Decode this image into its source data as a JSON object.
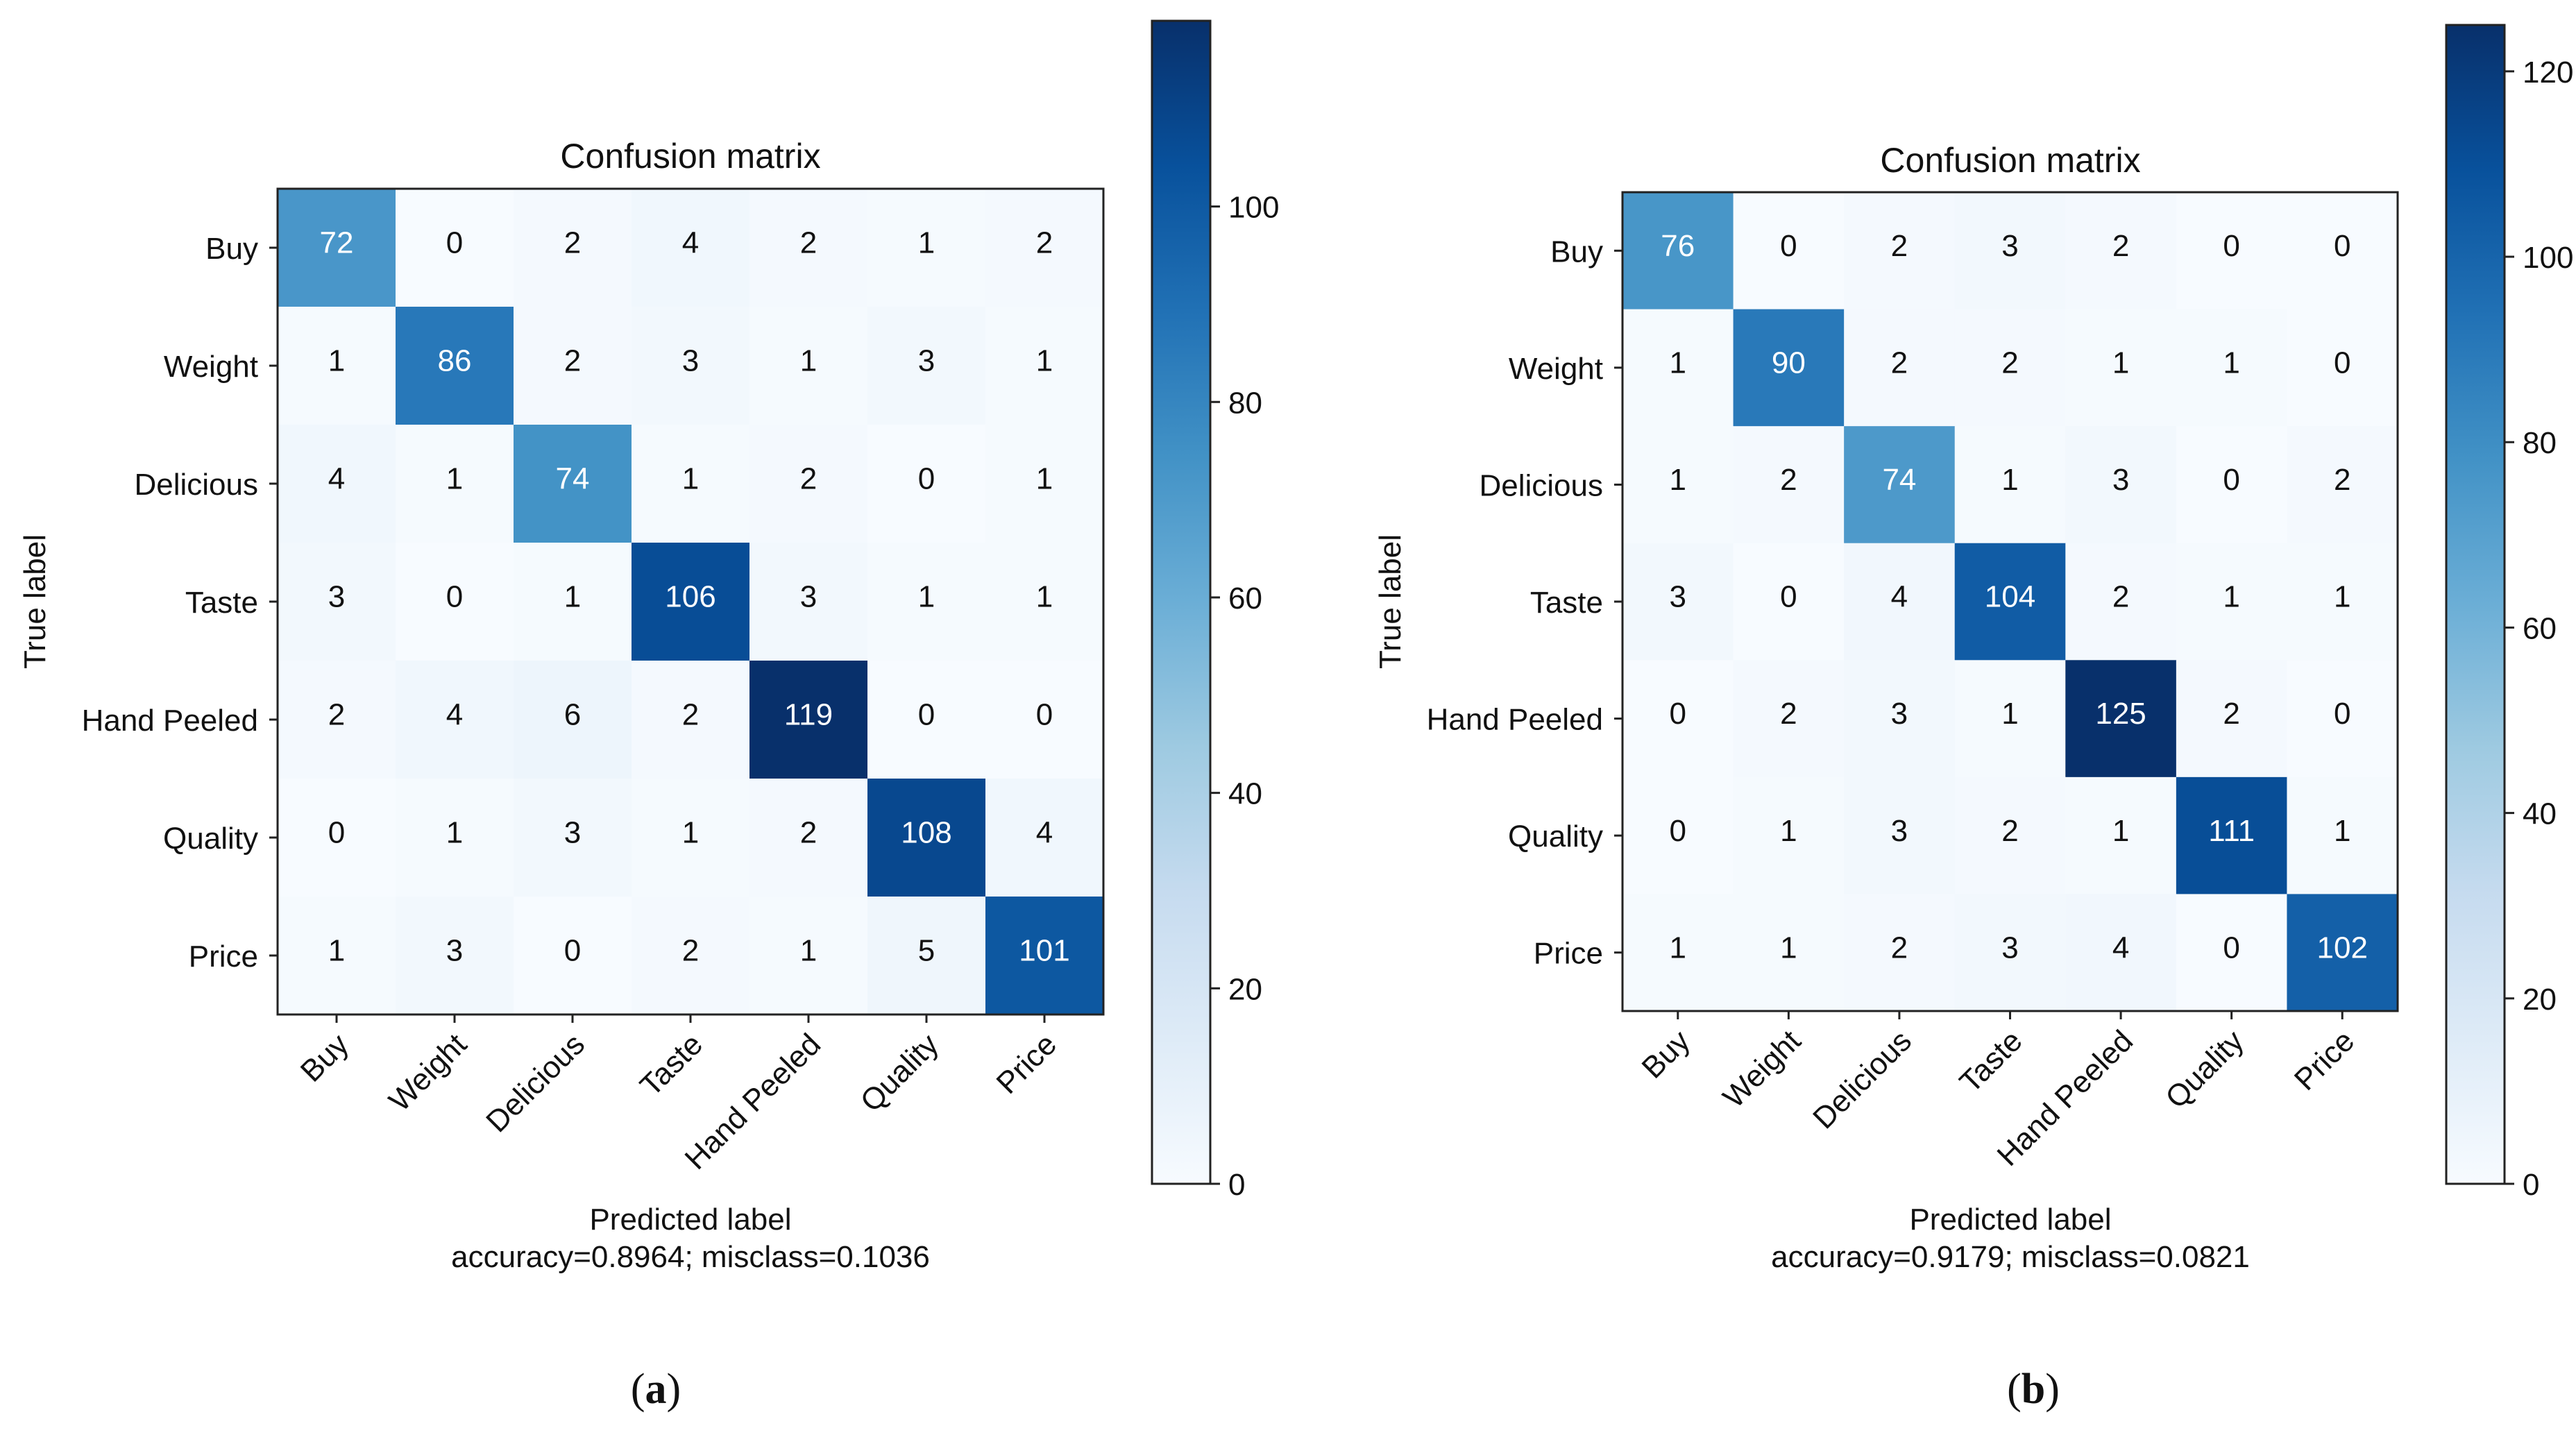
{
  "chart_data": [
    {
      "type": "heatmap",
      "panel_label": "a",
      "title": "Confusion matrix",
      "xlabel": "Predicted label",
      "ylabel": "True label",
      "metrics_text": "accuracy=0.8964; misclass=0.1036",
      "x_categories": [
        "Buy",
        "Weight",
        "Delicious",
        "Taste",
        "Hand Peeled",
        "Quality",
        "Price"
      ],
      "y_categories": [
        "Buy",
        "Weight",
        "Delicious",
        "Taste",
        "Hand Peeled",
        "Quality",
        "Price"
      ],
      "matrix": [
        [
          72,
          0,
          2,
          4,
          2,
          1,
          2
        ],
        [
          1,
          86,
          2,
          3,
          1,
          3,
          1
        ],
        [
          4,
          1,
          74,
          1,
          2,
          0,
          1
        ],
        [
          3,
          0,
          1,
          106,
          3,
          1,
          1
        ],
        [
          2,
          4,
          6,
          2,
          119,
          0,
          0
        ],
        [
          0,
          1,
          3,
          1,
          2,
          108,
          4
        ],
        [
          1,
          3,
          0,
          2,
          1,
          5,
          101
        ]
      ],
      "colorbar": {
        "min": 0,
        "max": 119,
        "ticks": [
          0,
          20,
          40,
          60,
          80,
          100
        ],
        "colormap": "Blues"
      }
    },
    {
      "type": "heatmap",
      "panel_label": "b",
      "title": "Confusion matrix",
      "xlabel": "Predicted label",
      "ylabel": "True label",
      "metrics_text": "accuracy=0.9179; misclass=0.0821",
      "x_categories": [
        "Buy",
        "Weight",
        "Delicious",
        "Taste",
        "Hand Peeled",
        "Quality",
        "Price"
      ],
      "y_categories": [
        "Buy",
        "Weight",
        "Delicious",
        "Taste",
        "Hand Peeled",
        "Quality",
        "Price"
      ],
      "matrix": [
        [
          76,
          0,
          2,
          3,
          2,
          0,
          0
        ],
        [
          1,
          90,
          2,
          2,
          1,
          1,
          0
        ],
        [
          1,
          2,
          74,
          1,
          3,
          0,
          2
        ],
        [
          3,
          0,
          4,
          104,
          2,
          1,
          1
        ],
        [
          0,
          2,
          3,
          1,
          125,
          2,
          0
        ],
        [
          0,
          1,
          3,
          2,
          1,
          111,
          1
        ],
        [
          1,
          1,
          2,
          3,
          4,
          0,
          102
        ]
      ],
      "colorbar": {
        "min": 0,
        "max": 125,
        "ticks": [
          0,
          20,
          40,
          60,
          80,
          100,
          120
        ],
        "colormap": "Blues"
      }
    }
  ]
}
